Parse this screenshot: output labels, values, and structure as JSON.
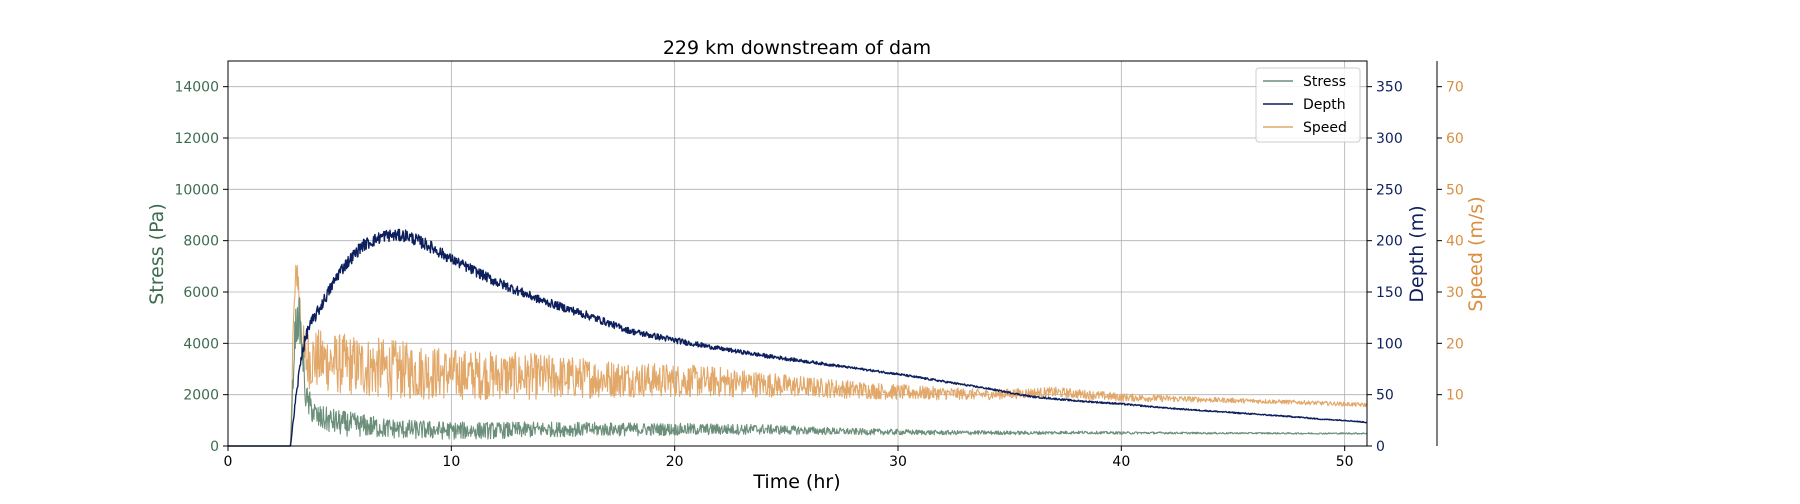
{
  "chart_data": {
    "type": "line",
    "title": "229 km downstream of dam",
    "xlabel": "Time (hr)",
    "xlim": [
      0,
      51
    ],
    "xticks": [
      0,
      10,
      20,
      30,
      40,
      50
    ],
    "grid": true,
    "legend_position": "top-right",
    "axes": {
      "left": {
        "label": "Stress (Pa)",
        "ylim": [
          0,
          15000
        ],
        "ticks": [
          0,
          2000,
          4000,
          6000,
          8000,
          10000,
          12000,
          14000
        ],
        "color": "#3d6b4f"
      },
      "right": {
        "label": "Depth (m)",
        "ylim": [
          0,
          375
        ],
        "ticks": [
          0,
          50,
          100,
          150,
          200,
          250,
          300,
          350
        ],
        "color": "#0d1f5c"
      },
      "right2": {
        "label": "Speed (m/s)",
        "ylim": [
          0,
          75
        ],
        "ticks": [
          10,
          20,
          30,
          40,
          50,
          60,
          70
        ],
        "color": "#d98f3f"
      }
    },
    "series": [
      {
        "name": "Stress",
        "axis": "left",
        "color": "#6b8f7a",
        "x": [
          0,
          2.8,
          3.0,
          3.2,
          3.5,
          4,
          5,
          6,
          7,
          8,
          10,
          12,
          14,
          16,
          18,
          20,
          22,
          24,
          26,
          28,
          30,
          32,
          34,
          36,
          38,
          40,
          42,
          44,
          46,
          48,
          50,
          51
        ],
        "values": [
          0,
          0,
          4500,
          5000,
          1800,
          1100,
          900,
          800,
          700,
          650,
          600,
          600,
          650,
          650,
          650,
          650,
          650,
          650,
          600,
          560,
          540,
          520,
          520,
          510,
          530,
          510,
          510,
          500,
          500,
          490,
          490,
          490
        ],
        "noise": [
          0,
          0,
          800,
          800,
          600,
          500,
          500,
          450,
          400,
          380,
          350,
          330,
          300,
          280,
          260,
          240,
          220,
          200,
          160,
          130,
          110,
          90,
          80,
          70,
          60,
          50,
          40,
          35,
          30,
          30,
          30,
          30
        ]
      },
      {
        "name": "Depth",
        "axis": "right",
        "color": "#0d1f5c",
        "x": [
          0,
          2.8,
          3.0,
          3.3,
          3.6,
          4,
          5,
          6,
          7,
          8,
          9,
          10,
          12,
          14,
          16,
          18,
          20,
          22,
          24,
          26,
          28,
          30,
          32,
          34,
          36,
          38,
          40,
          42,
          44,
          46,
          48,
          49,
          50,
          51
        ],
        "values": [
          0,
          0,
          40,
          90,
          115,
          130,
          170,
          195,
          205,
          205,
          195,
          182,
          160,
          142,
          128,
          112,
          103,
          95,
          88,
          82,
          76,
          70,
          63,
          56,
          48,
          44,
          41,
          37,
          34,
          31,
          28,
          26,
          25,
          23
        ],
        "noise": [
          0,
          0,
          4,
          6,
          6,
          6,
          6,
          6,
          6,
          6,
          6,
          5,
          5,
          4,
          4,
          3,
          3,
          2,
          2,
          1.5,
          1,
          1,
          1,
          0.8,
          0.8,
          0.8,
          0.8,
          0.6,
          0.6,
          0.6,
          0.6,
          0.5,
          0.5,
          0.5
        ]
      },
      {
        "name": "Speed",
        "axis": "right2",
        "color": "#e2a869",
        "x": [
          0,
          2.8,
          2.9,
          3.0,
          3.1,
          3.2,
          3.4,
          3.8,
          5,
          7,
          10,
          14,
          18,
          22,
          26,
          30,
          34,
          37,
          40,
          44,
          48,
          51
        ],
        "values": [
          0,
          0,
          20,
          30,
          35,
          28,
          17,
          17,
          16,
          15,
          14,
          13.5,
          13,
          12.5,
          11.5,
          10.5,
          10,
          10.5,
          9.5,
          9,
          8.5,
          8
        ],
        "noise": [
          0,
          0,
          4,
          4,
          4,
          5,
          6,
          6,
          6,
          6,
          5,
          4.5,
          3.5,
          3,
          2,
          1.5,
          1,
          1,
          0.8,
          0.5,
          0.4,
          0.4
        ]
      }
    ]
  }
}
